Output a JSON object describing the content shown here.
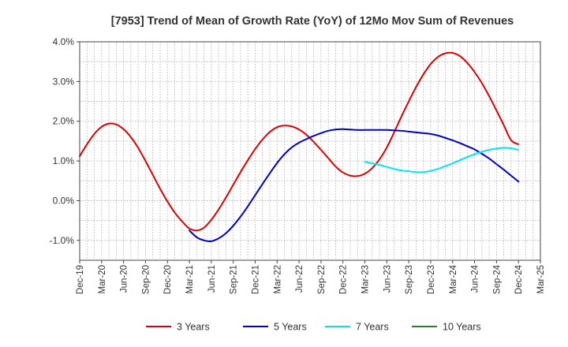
{
  "chart_data": {
    "type": "line",
    "title": "[7953]  Trend of Mean of Growth Rate (YoY) of 12Mo Mov Sum of Revenues",
    "xlabel": "",
    "ylabel": "",
    "ylim": [
      -1.5,
      4.0
    ],
    "y_ticks": [
      4.0,
      3.0,
      2.0,
      1.0,
      0.0,
      -1.0
    ],
    "y_tick_labels": [
      "4.0%",
      "3.0%",
      "2.0%",
      "1.0%",
      "0.0%",
      "-1.0%"
    ],
    "x_tick_labels": [
      "Dec-19",
      "Mar-20",
      "Jun-20",
      "Sep-20",
      "Dec-20",
      "Mar-21",
      "Jun-21",
      "Sep-21",
      "Dec-21",
      "Mar-22",
      "Jun-22",
      "Sep-22",
      "Dec-22",
      "Mar-23",
      "Jun-23",
      "Sep-23",
      "Dec-23",
      "Mar-24",
      "Jun-24",
      "Sep-24",
      "Dec-24",
      "Mar-25"
    ],
    "x_range_months": [
      0,
      63
    ],
    "grid": true,
    "legend_position": "bottom",
    "series": [
      {
        "name": "3 Years",
        "color": "#dd0000",
        "x": [
          0,
          1,
          2,
          3,
          4,
          5,
          6,
          7,
          8,
          9,
          10,
          11,
          12,
          13,
          14,
          15,
          16,
          17,
          18,
          19,
          20,
          21,
          22,
          23,
          24,
          25,
          26,
          27,
          28,
          29,
          30,
          31,
          32,
          33,
          34,
          35,
          36,
          37,
          38,
          39,
          40,
          41,
          42,
          43,
          44,
          45,
          46,
          47,
          48,
          49,
          50,
          51,
          52,
          53,
          54,
          55,
          56,
          57,
          58,
          59,
          60
        ],
        "values": [
          1.12,
          1.42,
          1.68,
          1.86,
          1.94,
          1.92,
          1.8,
          1.6,
          1.33,
          1.0,
          0.65,
          0.3,
          -0.02,
          -0.3,
          -0.52,
          -0.7,
          -0.75,
          -0.68,
          -0.48,
          -0.22,
          0.08,
          0.4,
          0.72,
          1.02,
          1.3,
          1.54,
          1.73,
          1.85,
          1.89,
          1.87,
          1.79,
          1.66,
          1.48,
          1.28,
          1.07,
          0.86,
          0.71,
          0.63,
          0.62,
          0.68,
          0.82,
          1.04,
          1.34,
          1.72,
          2.12,
          2.5,
          2.86,
          3.18,
          3.44,
          3.62,
          3.71,
          3.72,
          3.64,
          3.47,
          3.24,
          2.96,
          2.63,
          2.27,
          1.9,
          1.52,
          1.42
        ]
      },
      {
        "name": "5 Years",
        "color": "#0000cc",
        "x": [
          15,
          16,
          17,
          18,
          19,
          20,
          21,
          22,
          23,
          24,
          25,
          26,
          27,
          28,
          29,
          30,
          31,
          32,
          33,
          34,
          35,
          36,
          37,
          38,
          39,
          40,
          41,
          42,
          43,
          44,
          45,
          46,
          47,
          48,
          49,
          50,
          51,
          52,
          53,
          54,
          55,
          56,
          57,
          58,
          59,
          60
        ],
        "values": [
          -0.75,
          -0.92,
          -1.0,
          -1.02,
          -0.95,
          -0.82,
          -0.63,
          -0.4,
          -0.14,
          0.14,
          0.42,
          0.69,
          0.95,
          1.17,
          1.34,
          1.46,
          1.55,
          1.63,
          1.7,
          1.76,
          1.79,
          1.8,
          1.79,
          1.78,
          1.78,
          1.78,
          1.78,
          1.78,
          1.77,
          1.76,
          1.74,
          1.72,
          1.7,
          1.68,
          1.64,
          1.58,
          1.52,
          1.45,
          1.37,
          1.29,
          1.18,
          1.06,
          0.92,
          0.78,
          0.63,
          0.48
        ]
      },
      {
        "name": "7 Years",
        "color": "#00e5ee",
        "x": [
          39,
          40,
          41,
          42,
          43,
          44,
          45,
          46,
          47,
          48,
          49,
          50,
          51,
          52,
          53,
          54,
          55,
          56,
          57,
          58,
          59,
          60
        ],
        "values": [
          0.98,
          0.94,
          0.9,
          0.85,
          0.8,
          0.76,
          0.74,
          0.72,
          0.72,
          0.75,
          0.8,
          0.87,
          0.94,
          1.02,
          1.1,
          1.17,
          1.23,
          1.28,
          1.31,
          1.33,
          1.32,
          1.28
        ]
      },
      {
        "name": "10 Years",
        "color": "#228822",
        "x": [],
        "values": []
      }
    ]
  }
}
